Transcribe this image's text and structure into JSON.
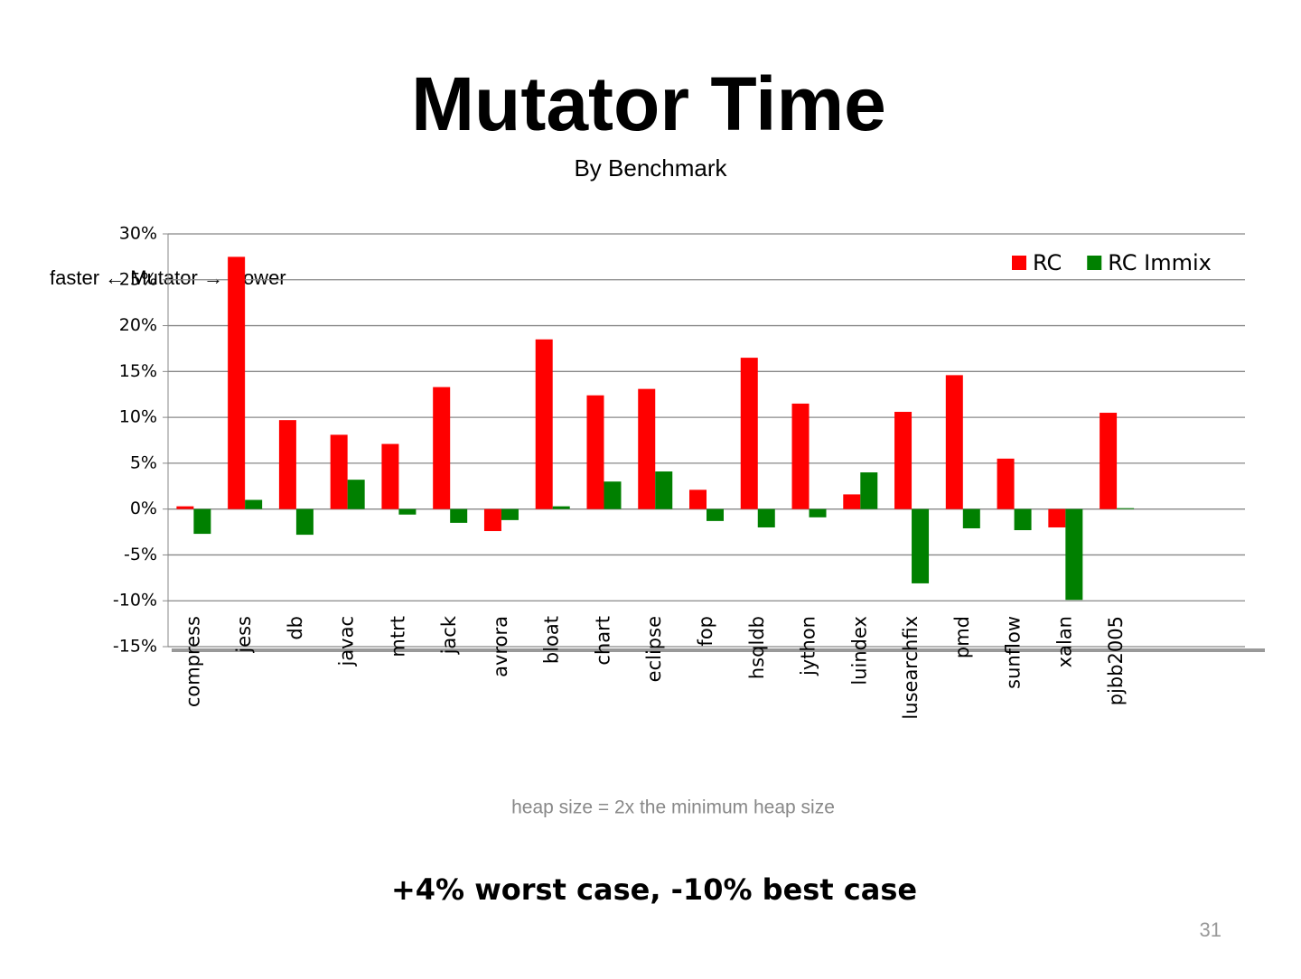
{
  "title": "Mutator Time",
  "subtitle": "By Benchmark",
  "chart_data": {
    "type": "bar",
    "y_label": "faster ← Mutator → slower",
    "categories": [
      "compress",
      "jess",
      "db",
      "javac",
      "mtrt",
      "jack",
      "avrora",
      "bloat",
      "chart",
      "eclipse",
      "fop",
      "hsqldb",
      "jython",
      "luindex",
      "lusearchfix",
      "pmd",
      "sunflow",
      "xalan",
      "pjbb2005",
      null,
      null
    ],
    "series": [
      {
        "name": "RC",
        "color": "#ff0000",
        "values": [
          0.3,
          27.5,
          9.7,
          8.1,
          7.1,
          13.3,
          -2.4,
          18.5,
          12.4,
          13.1,
          2.1,
          16.5,
          11.5,
          1.6,
          10.6,
          14.6,
          5.5,
          -2.0,
          10.5,
          null,
          null
        ]
      },
      {
        "name": "RC Immix",
        "color": "#008000",
        "values": [
          -2.7,
          1.0,
          -2.8,
          3.2,
          -0.6,
          -1.5,
          -1.2,
          0.3,
          3.0,
          4.1,
          -1.3,
          -2.0,
          -0.9,
          4.0,
          -8.1,
          -2.1,
          -2.3,
          -9.9,
          0.1,
          null,
          null
        ]
      }
    ],
    "ylim": [
      -15,
      30
    ],
    "yticks": [
      {
        "value": -15,
        "label": "-15%"
      },
      {
        "value": -10,
        "label": "-10%"
      },
      {
        "value": -5,
        "label": "-5%"
      },
      {
        "value": 0,
        "label": "0%"
      },
      {
        "value": 5,
        "label": "5%"
      },
      {
        "value": 10,
        "label": "10%"
      },
      {
        "value": 15,
        "label": "15%"
      },
      {
        "value": 20,
        "label": "20%"
      },
      {
        "value": 25,
        "label": "25%"
      },
      {
        "value": 30,
        "label": "30%"
      }
    ],
    "grid": true,
    "legend": "top-right"
  },
  "note": "heap size = 2x the minimum heap size",
  "takeaway": "+4% worst case, -10% best case",
  "page_number": "31"
}
